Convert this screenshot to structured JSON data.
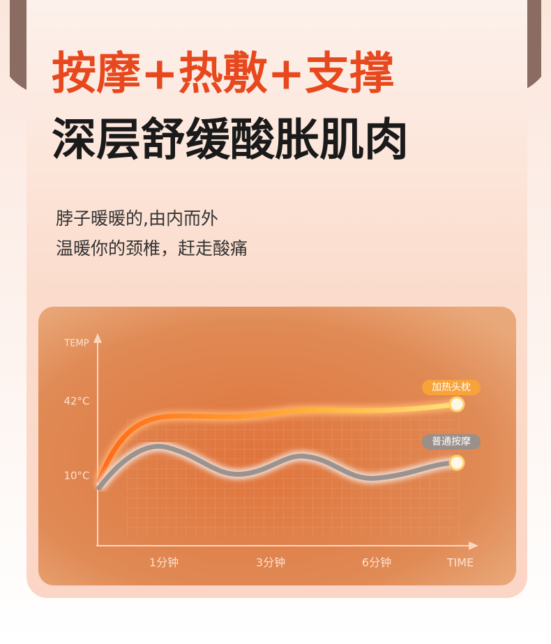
{
  "header": {
    "title": "按摩+热敷+支撑",
    "subtitle": "深层舒缓酸胀肌肉"
  },
  "description": [
    "脖子暖暖的,由内而外",
    "温暖你的颈椎，赶走酸痛"
  ],
  "chart": {
    "y_axis_label": "TEMP",
    "y_labels": [
      "42°C",
      "10°C"
    ],
    "x_labels": [
      "1分钟",
      "3分钟",
      "6分钟"
    ],
    "x_axis_label": "TIME",
    "legend": [
      "加热头枕",
      "普通按摩"
    ]
  }
}
